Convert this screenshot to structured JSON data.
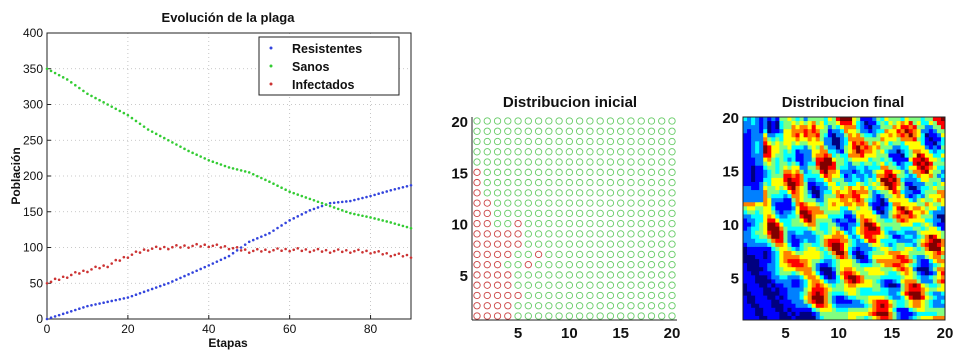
{
  "chart_data": [
    {
      "type": "scatter",
      "title": "Evolución de la plaga",
      "xlabel": "Etapas",
      "ylabel": "Población",
      "xlim": [
        0,
        90
      ],
      "ylim": [
        0,
        400
      ],
      "xticks": [
        "0",
        "20",
        "40",
        "60",
        "80"
      ],
      "yticks": [
        "0",
        "50",
        "100",
        "150",
        "200",
        "250",
        "300",
        "350",
        "400"
      ],
      "grid": true,
      "legend_position": "top-right",
      "series": [
        {
          "name": "Resistentes",
          "color": "#3344dd",
          "x": [
            0,
            10,
            20,
            30,
            40,
            45,
            50,
            55,
            60,
            65,
            70,
            75,
            80,
            85,
            90
          ],
          "y": [
            0,
            18,
            30,
            50,
            75,
            88,
            108,
            120,
            138,
            152,
            162,
            165,
            172,
            180,
            187
          ]
        },
        {
          "name": "Sanos",
          "color": "#33cc33",
          "x": [
            0,
            5,
            10,
            15,
            20,
            25,
            30,
            35,
            40,
            45,
            50,
            55,
            60,
            65,
            70,
            75,
            80,
            85,
            90
          ],
          "y": [
            350,
            335,
            315,
            300,
            285,
            265,
            250,
            235,
            222,
            212,
            205,
            192,
            178,
            168,
            158,
            148,
            142,
            135,
            127
          ]
        },
        {
          "name": "Infectados",
          "color": "#cc3333",
          "x": [
            0,
            5,
            10,
            15,
            20,
            25,
            30,
            35,
            40,
            45,
            50,
            55,
            60,
            65,
            70,
            75,
            80,
            85,
            90
          ],
          "y": [
            50,
            60,
            68,
            75,
            88,
            98,
            100,
            102,
            103,
            100,
            95,
            96,
            97,
            96,
            95,
            95,
            94,
            90,
            88
          ]
        }
      ]
    },
    {
      "type": "scatter",
      "title": "Distribucion inicial",
      "xlim": [
        1,
        20
      ],
      "ylim": [
        1,
        20
      ],
      "xticks": [
        "5",
        "10",
        "15",
        "20"
      ],
      "yticks": [
        "5",
        "10",
        "15",
        "20"
      ],
      "grid_size": 20,
      "series": [
        {
          "name": "sanos",
          "color": "#66cc66"
        },
        {
          "name": "infectados",
          "color": "#cc4444"
        }
      ]
    },
    {
      "type": "heatmap",
      "title": "Distribucion final",
      "xlim": [
        1,
        20
      ],
      "ylim": [
        1,
        20
      ],
      "xticks": [
        "5",
        "10",
        "15",
        "20"
      ],
      "yticks": [
        "5",
        "10",
        "15",
        "20"
      ],
      "colormap": "jet",
      "grid_size": 20
    }
  ]
}
